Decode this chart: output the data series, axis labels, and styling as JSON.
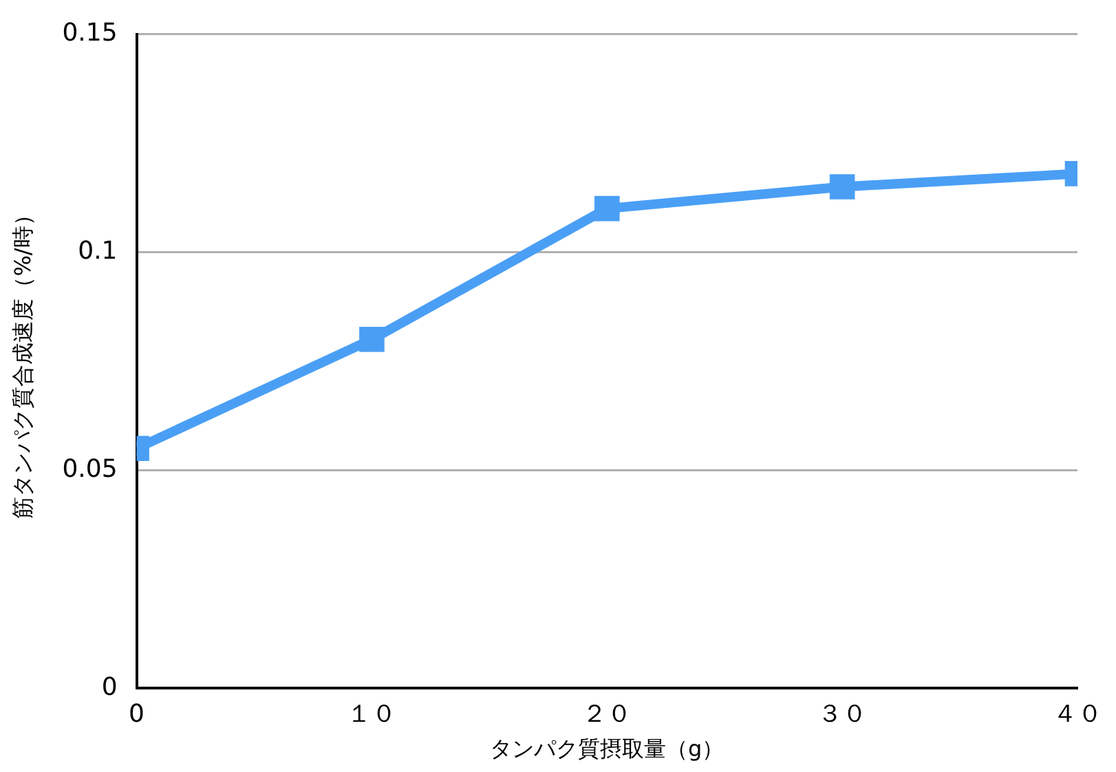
{
  "chart_data": {
    "type": "line",
    "xlabel": "タンパク質摂取量（g）",
    "ylabel": "筋タンパク質合成速度（%/時）",
    "x": [
      0,
      10,
      20,
      30,
      40
    ],
    "series": [
      {
        "color": "#4a9ff5",
        "values": [
          0.055,
          0.08,
          0.11,
          0.115,
          0.118
        ]
      }
    ],
    "xlim": [
      0,
      40
    ],
    "xticks": [
      0,
      {
        "value": 10,
        "label": "１０"
      },
      {
        "value": 20,
        "label": "２０"
      },
      {
        "value": 30,
        "label": "３０"
      },
      {
        "value": 40,
        "label": "４０"
      }
    ],
    "ylim": [
      0,
      0.15
    ],
    "yticks": [
      0,
      0.05,
      0.1,
      0.15
    ],
    "grid": "y",
    "legend": false,
    "marker": "square",
    "line_style": "solid"
  }
}
